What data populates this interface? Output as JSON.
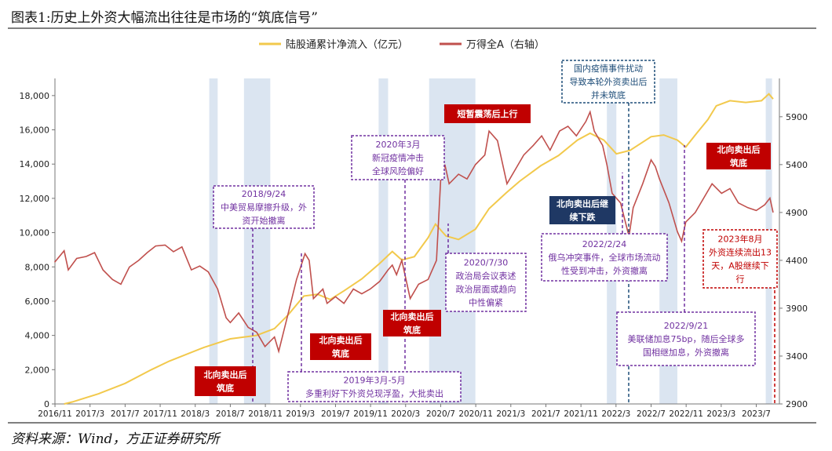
{
  "title": "图表1:历史上外资大幅流出往往是市场的“筑底信号”",
  "source": "资料来源：Wind，方正证券研究所",
  "colors": {
    "northbound": "#f2c94c",
    "wind_a": "#c0504d",
    "shade": "#dbe5f1",
    "red_box": "#c00000",
    "navy_box": "#1f3864",
    "purple_dash": "#7030a0",
    "red_dash": "#c00000",
    "navy_dash": "#1f4e79"
  },
  "chart_data": {
    "type": "line",
    "legend": [
      {
        "name": "陆股通累计净流入（亿元）",
        "color": "#f2c94c"
      },
      {
        "name": "万得全A（右轴）",
        "color": "#c0504d"
      }
    ],
    "x_ticks": [
      "2016/11",
      "2017/3",
      "2017/7",
      "2017/11",
      "2018/3",
      "2018/7",
      "2018/11",
      "2019/3",
      "2019/7",
      "2019/11",
      "2020/3",
      "2020/7",
      "2020/11",
      "2021/3",
      "2021/7",
      "2021/11",
      "2022/3",
      "2022/7",
      "2022/11",
      "2023/3",
      "2023/7"
    ],
    "x_range": [
      2016.833,
      2023.72
    ],
    "y_left": {
      "min": 0,
      "max": 19000,
      "ticks": [
        0,
        2000,
        4000,
        6000,
        8000,
        10000,
        12000,
        14000,
        16000,
        18000
      ],
      "tick_labels": [
        "0",
        "2,000",
        "4,000",
        "6,000",
        "8,000",
        "10,000",
        "12,000",
        "14,000",
        "16,000",
        "18,000"
      ]
    },
    "y_right": {
      "min": 2900,
      "max": 6300,
      "ticks": [
        2900,
        3400,
        3900,
        4400,
        4900,
        5400,
        5900
      ],
      "tick_labels": [
        "2900",
        "3400",
        "3900",
        "4400",
        "4900",
        "5400",
        "5900"
      ]
    },
    "shaded_periods": [
      [
        2018.3,
        2018.38
      ],
      [
        2018.63,
        2018.88
      ],
      [
        2019.91,
        2020.0
      ],
      [
        2020.39,
        2020.83
      ],
      [
        2022.08,
        2022.17
      ],
      [
        2022.58,
        2022.75
      ],
      [
        2023.59,
        2023.65
      ]
    ],
    "northbound_series": [
      [
        2016.92,
        0
      ],
      [
        2017.0,
        120
      ],
      [
        2017.25,
        600
      ],
      [
        2017.5,
        1200
      ],
      [
        2017.75,
        2000
      ],
      [
        2017.92,
        2500
      ],
      [
        2018.25,
        3300
      ],
      [
        2018.5,
        3800
      ],
      [
        2018.75,
        4000
      ],
      [
        2018.92,
        4400
      ],
      [
        2019.05,
        5200
      ],
      [
        2019.2,
        6300
      ],
      [
        2019.33,
        6400
      ],
      [
        2019.45,
        6100
      ],
      [
        2019.58,
        6600
      ],
      [
        2019.75,
        7300
      ],
      [
        2019.92,
        8200
      ],
      [
        2020.04,
        8900
      ],
      [
        2020.13,
        8400
      ],
      [
        2020.25,
        8600
      ],
      [
        2020.38,
        9700
      ],
      [
        2020.45,
        10500
      ],
      [
        2020.55,
        9800
      ],
      [
        2020.67,
        9600
      ],
      [
        2020.83,
        10200
      ],
      [
        2020.96,
        11400
      ],
      [
        2021.12,
        12300
      ],
      [
        2021.25,
        13000
      ],
      [
        2021.45,
        13900
      ],
      [
        2021.62,
        14500
      ],
      [
        2021.8,
        15400
      ],
      [
        2021.92,
        15800
      ],
      [
        2022.05,
        15400
      ],
      [
        2022.17,
        14600
      ],
      [
        2022.3,
        14800
      ],
      [
        2022.5,
        15600
      ],
      [
        2022.62,
        15700
      ],
      [
        2022.75,
        15400
      ],
      [
        2022.83,
        15000
      ],
      [
        2022.92,
        15700
      ],
      [
        2023.04,
        16600
      ],
      [
        2023.12,
        17400
      ],
      [
        2023.25,
        17700
      ],
      [
        2023.4,
        17600
      ],
      [
        2023.55,
        17700
      ],
      [
        2023.62,
        18100
      ],
      [
        2023.66,
        17800
      ]
    ],
    "wind_a_series": [
      [
        2016.83,
        4380
      ],
      [
        2016.92,
        4500
      ],
      [
        2016.96,
        4300
      ],
      [
        2017.04,
        4420
      ],
      [
        2017.13,
        4440
      ],
      [
        2017.21,
        4480
      ],
      [
        2017.29,
        4300
      ],
      [
        2017.38,
        4200
      ],
      [
        2017.46,
        4150
      ],
      [
        2017.54,
        4330
      ],
      [
        2017.63,
        4400
      ],
      [
        2017.71,
        4480
      ],
      [
        2017.79,
        4550
      ],
      [
        2017.88,
        4560
      ],
      [
        2017.96,
        4490
      ],
      [
        2018.04,
        4540
      ],
      [
        2018.13,
        4300
      ],
      [
        2018.21,
        4340
      ],
      [
        2018.29,
        4280
      ],
      [
        2018.38,
        4100
      ],
      [
        2018.46,
        3800
      ],
      [
        2018.5,
        3750
      ],
      [
        2018.58,
        3850
      ],
      [
        2018.67,
        3700
      ],
      [
        2018.75,
        3650
      ],
      [
        2018.83,
        3500
      ],
      [
        2018.92,
        3600
      ],
      [
        2018.96,
        3450
      ],
      [
        2019.04,
        3800
      ],
      [
        2019.13,
        4200
      ],
      [
        2019.21,
        4470
      ],
      [
        2019.25,
        4400
      ],
      [
        2019.29,
        4000
      ],
      [
        2019.38,
        4100
      ],
      [
        2019.42,
        3950
      ],
      [
        2019.5,
        4020
      ],
      [
        2019.58,
        3950
      ],
      [
        2019.67,
        4100
      ],
      [
        2019.75,
        4050
      ],
      [
        2019.83,
        4100
      ],
      [
        2019.92,
        4180
      ],
      [
        2020.0,
        4300
      ],
      [
        2020.04,
        4350
      ],
      [
        2020.08,
        4250
      ],
      [
        2020.13,
        4400
      ],
      [
        2020.21,
        4000
      ],
      [
        2020.29,
        4150
      ],
      [
        2020.38,
        4200
      ],
      [
        2020.46,
        4400
      ],
      [
        2020.5,
        5250
      ],
      [
        2020.54,
        5400
      ],
      [
        2020.58,
        5200
      ],
      [
        2020.67,
        5300
      ],
      [
        2020.75,
        5250
      ],
      [
        2020.83,
        5400
      ],
      [
        2020.92,
        5500
      ],
      [
        2020.96,
        5750
      ],
      [
        2021.04,
        5650
      ],
      [
        2021.13,
        5200
      ],
      [
        2021.21,
        5350
      ],
      [
        2021.29,
        5500
      ],
      [
        2021.38,
        5600
      ],
      [
        2021.46,
        5700
      ],
      [
        2021.54,
        5550
      ],
      [
        2021.63,
        5750
      ],
      [
        2021.71,
        5800
      ],
      [
        2021.79,
        5700
      ],
      [
        2021.88,
        5850
      ],
      [
        2021.92,
        5950
      ],
      [
        2021.96,
        5750
      ],
      [
        2022.04,
        5600
      ],
      [
        2022.08,
        5400
      ],
      [
        2022.13,
        5100
      ],
      [
        2022.21,
        5000
      ],
      [
        2022.29,
        4650
      ],
      [
        2022.33,
        4950
      ],
      [
        2022.42,
        5200
      ],
      [
        2022.5,
        5450
      ],
      [
        2022.54,
        5380
      ],
      [
        2022.58,
        5250
      ],
      [
        2022.67,
        5000
      ],
      [
        2022.75,
        4700
      ],
      [
        2022.79,
        4600
      ],
      [
        2022.83,
        4800
      ],
      [
        2022.92,
        4900
      ],
      [
        2023.0,
        5050
      ],
      [
        2023.08,
        5200
      ],
      [
        2023.17,
        5100
      ],
      [
        2023.25,
        5150
      ],
      [
        2023.33,
        5000
      ],
      [
        2023.42,
        4950
      ],
      [
        2023.5,
        4920
      ],
      [
        2023.58,
        4980
      ],
      [
        2023.63,
        5050
      ],
      [
        2023.66,
        4900
      ]
    ],
    "annotations": [
      {
        "id": "a-2018-sell",
        "style": "red",
        "lines": [
          "北向卖出后",
          "筑底"
        ],
        "anchor": [
          2018.5,
          4300
        ]
      },
      {
        "id": "a-2018-trade",
        "style": "purple",
        "lines": [
          "2018/9/24",
          "中美贸易摩擦升级，外",
          "资开始撤离"
        ],
        "anchor": [
          2018.73,
          8800
        ]
      },
      {
        "id": "a-2019-sell",
        "style": "red",
        "lines": [
          "北向卖出后",
          "筑底"
        ],
        "anchor": [
          2019.33,
          3800
        ]
      },
      {
        "id": "a-2019-35",
        "style": "purple",
        "lines": [
          "2019年3月-5月",
          "多重利好下外资兑现浮盈，大批卖出"
        ],
        "anchor": [
          2019.25,
          1200
        ]
      },
      {
        "id": "a-2020-3",
        "style": "purple",
        "lines": [
          "2020年3月",
          "新冠疫情冲击",
          "全球风险偏好"
        ],
        "anchor": [
          2020.0,
          13500
        ]
      },
      {
        "id": "a-2020-sell",
        "style": "red",
        "lines": [
          "北向卖出后",
          "筑底"
        ],
        "anchor": [
          2020.2,
          4800
        ]
      },
      {
        "id": "a-2020-7",
        "style": "purple",
        "lines": [
          "2020/7/30",
          "政治局会议表述",
          "政治层面或趋向",
          "中性偏紧"
        ],
        "anchor": [
          2020.46,
          9000
        ]
      },
      {
        "id": "a-2020-up",
        "style": "red",
        "lines": [
          "短暂震荡后上行"
        ],
        "anchor": [
          2020.6,
          17600
        ]
      },
      {
        "id": "a-2022-covid",
        "style": "navy-dash",
        "lines": [
          "国内疫情事件扰动",
          "导致本轮外资卖出后",
          "并未筑底"
        ],
        "anchor": [
          2022.12,
          15500
        ]
      },
      {
        "id": "a-2022-sell",
        "style": "navy",
        "lines": [
          "北向卖出后继",
          "续下跌"
        ],
        "anchor": [
          2022.12,
          12000
        ]
      },
      {
        "id": "a-2022-2",
        "style": "purple",
        "lines": [
          "2022/2/24",
          "俄乌冲突事件，全球市场流动",
          "性受到冲击，外资撤离"
        ],
        "anchor": [
          2022.15,
          9500
        ]
      },
      {
        "id": "a-2022-9",
        "style": "purple",
        "lines": [
          "2022/9/21",
          "美联储加息75bp，随后全球多",
          "国相继加息，外资撤离"
        ],
        "anchor": [
          2022.72,
          4300
        ]
      },
      {
        "id": "a-2022-sell2",
        "style": "red",
        "lines": [
          "北向卖出后",
          "筑底"
        ],
        "anchor": [
          2022.92,
          14200
        ]
      },
      {
        "id": "a-2023-8",
        "style": "red-dash",
        "lines": [
          "2023年8月",
          "外资连续流出13",
          "天，A股继续下",
          "行"
        ],
        "anchor": [
          2023.6,
          7500
        ]
      }
    ]
  }
}
